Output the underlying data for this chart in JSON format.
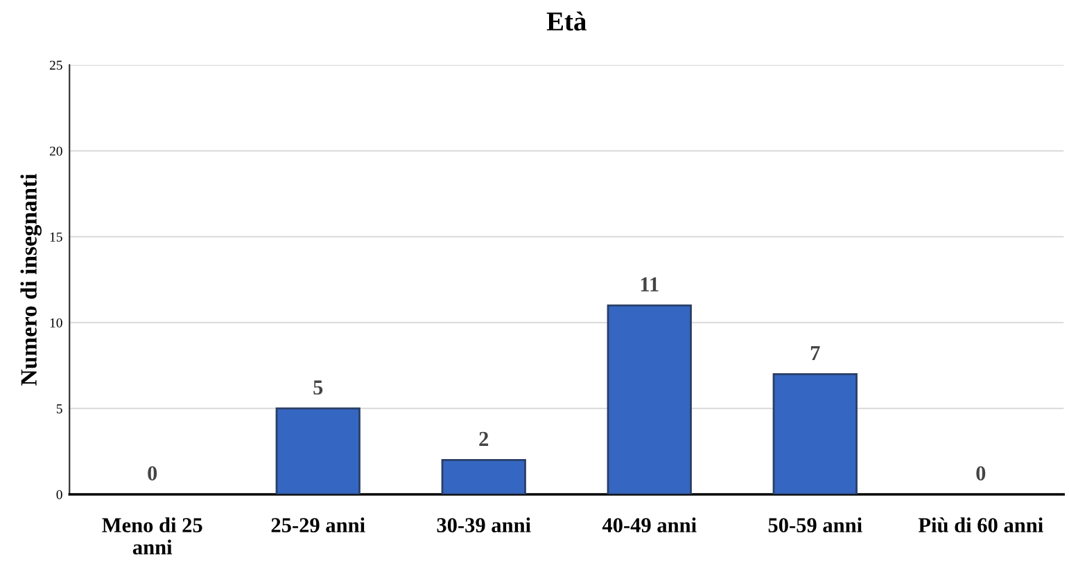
{
  "chart_data": {
    "type": "bar",
    "title": "Età",
    "ylabel": "Numero di insegnanti",
    "categories": [
      "Meno di 25\nanni",
      "25-29 anni",
      "30-39 anni",
      "40-49 anni",
      "50-59 anni",
      "Più di 60 anni"
    ],
    "values": [
      0,
      5,
      2,
      11,
      7,
      0
    ],
    "color": "#3567c2",
    "ylim": [
      0,
      25
    ],
    "yticks": [
      0,
      5,
      10,
      15,
      20,
      25
    ],
    "grid": "y",
    "data_labels": true,
    "legend": false
  }
}
